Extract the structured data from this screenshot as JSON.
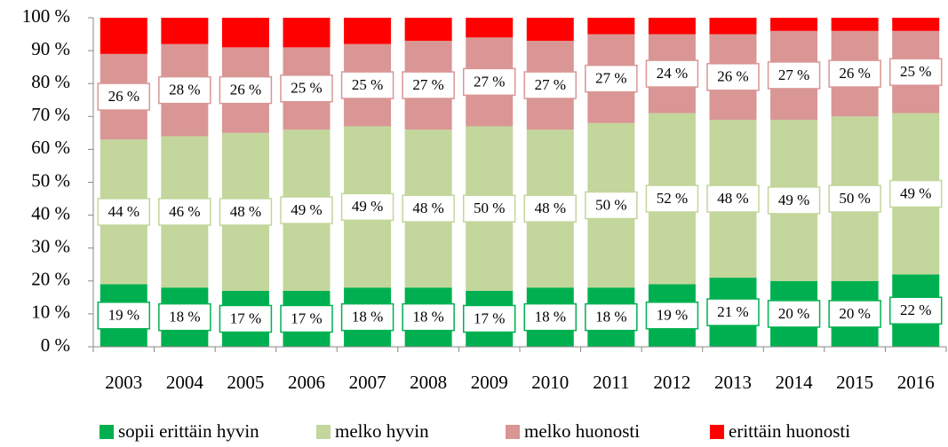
{
  "chart_data": {
    "type": "stacked_bar",
    "categories": [
      "2003",
      "2004",
      "2005",
      "2006",
      "2007",
      "2008",
      "2009",
      "2010",
      "2011",
      "2012",
      "2013",
      "2014",
      "2015",
      "2016"
    ],
    "series": [
      {
        "name": "sopii erittäin hyvin",
        "color": "#00b050",
        "values": [
          19,
          18,
          17,
          17,
          18,
          18,
          17,
          18,
          18,
          19,
          21,
          20,
          20,
          22
        ],
        "value_labels": [
          "19 %",
          "18 %",
          "17 %",
          "17 %",
          "18 %",
          "18 %",
          "17 %",
          "18 %",
          "18 %",
          "19 %",
          "21 %",
          "20 %",
          "20 %",
          "22 %"
        ]
      },
      {
        "name": "melko hyvin",
        "color": "#c3d69b",
        "values": [
          44,
          46,
          48,
          49,
          49,
          48,
          50,
          48,
          50,
          52,
          48,
          49,
          50,
          49
        ],
        "value_labels": [
          "44 %",
          "46 %",
          "48 %",
          "49 %",
          "49 %",
          "48 %",
          "50 %",
          "48 %",
          "50 %",
          "52 %",
          "48 %",
          "49 %",
          "50 %",
          "49 %"
        ]
      },
      {
        "name": "melko huonosti",
        "color": "#d99694",
        "values": [
          26,
          28,
          26,
          25,
          25,
          27,
          27,
          27,
          27,
          24,
          26,
          27,
          26,
          25
        ],
        "value_labels": [
          "26 %",
          "28 %",
          "26 %",
          "25 %",
          "25 %",
          "27 %",
          "27 %",
          "27 %",
          "27 %",
          "24 %",
          "26 %",
          "27 %",
          "26 %",
          "25 %"
        ]
      },
      {
        "name": "erittäin huonosti",
        "color": "#ff0000",
        "values": [
          11,
          8,
          9,
          9,
          8,
          7,
          6,
          7,
          5,
          5,
          5,
          4,
          4,
          4
        ]
      }
    ],
    "ylim": [
      0,
      100
    ],
    "yticks": [
      {
        "value": 0,
        "label": "0 %"
      },
      {
        "value": 10,
        "label": "10 %"
      },
      {
        "value": 20,
        "label": "20 %"
      },
      {
        "value": 30,
        "label": "30 %"
      },
      {
        "value": 40,
        "label": "40 %"
      },
      {
        "value": 50,
        "label": "50 %"
      },
      {
        "value": 60,
        "label": "60 %"
      },
      {
        "value": 70,
        "label": "70 %"
      },
      {
        "value": 80,
        "label": "80 %"
      },
      {
        "value": 90,
        "label": "90 %"
      },
      {
        "value": 100,
        "label": "100 %"
      }
    ],
    "grid": false,
    "legend": "bottom"
  }
}
